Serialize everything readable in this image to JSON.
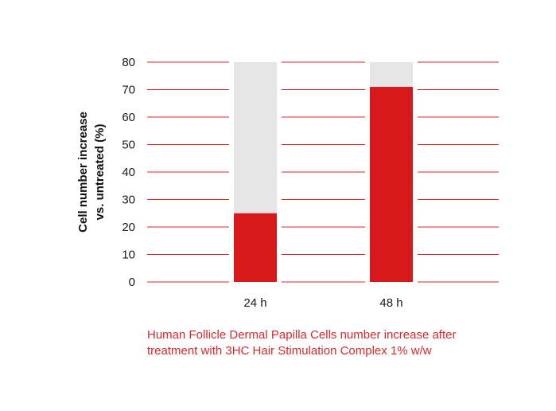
{
  "chart_data": {
    "type": "bar",
    "categories": [
      "24 h",
      "48 h"
    ],
    "values": [
      25,
      71
    ],
    "ylabel_lines": [
      "Cell number increase",
      "vs. untreated (%)"
    ],
    "ylim": [
      0,
      80
    ],
    "yticks": [
      0,
      10,
      20,
      30,
      40,
      50,
      60,
      70,
      80
    ],
    "grid": true,
    "caption_lines": [
      "Human Follicle Dermal Papilla Cells number increase after",
      "treatment with 3HC Hair Stimulation Complex 1% w/w"
    ]
  },
  "colors": {
    "bar": "#d7191c",
    "bar_background": "#e6e6e6",
    "gridline": "#d42a2a",
    "caption": "#d42a2a"
  }
}
